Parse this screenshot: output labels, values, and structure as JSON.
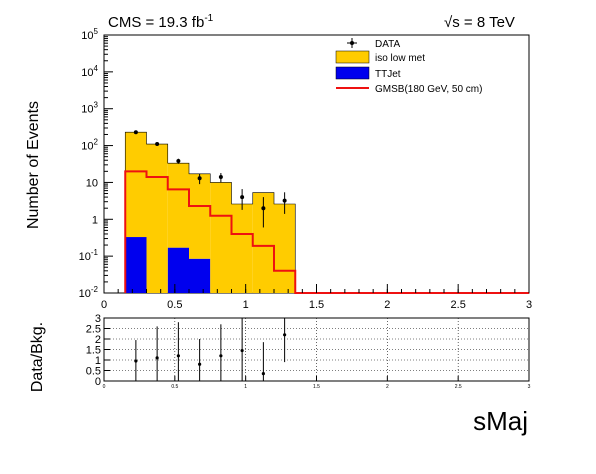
{
  "header": {
    "left_label": "CMS = 19.3 fb",
    "left_exponent": "-1",
    "right_label": "s = 8 TeV",
    "right_sqrt_symbol": "√"
  },
  "legend": {
    "items": [
      {
        "label": "DATA",
        "kind": "marker",
        "color": "#000000"
      },
      {
        "label": "iso low met",
        "kind": "fill",
        "color": "#ffcc00"
      },
      {
        "label": "TTJet",
        "kind": "fill",
        "color": "#0000ee"
      },
      {
        "label": "GMSB(180 GeV, 50 cm)",
        "kind": "line",
        "color": "#ee1111"
      }
    ]
  },
  "chart_data": [
    {
      "type": "bar",
      "ylabel": "Number of Events",
      "xlabel": "",
      "yscale": "log",
      "xlim": [
        0,
        3
      ],
      "ylim": [
        0.01,
        100000
      ],
      "x_ticks": [
        "0",
        "0.5",
        "1",
        "1.5",
        "2",
        "2.5",
        "3"
      ],
      "y_ticks": [
        {
          "base": "10",
          "exp": "-2"
        },
        {
          "base": "10",
          "exp": "-1"
        },
        {
          "base": "1",
          "exp": ""
        },
        {
          "base": "10",
          "exp": ""
        },
        {
          "base": "10",
          "exp": "2"
        },
        {
          "base": "10",
          "exp": "3"
        },
        {
          "base": "10",
          "exp": "4"
        },
        {
          "base": "10",
          "exp": "5"
        }
      ],
      "bin_edges": [
        0.15,
        0.3,
        0.45,
        0.6,
        0.75,
        0.9,
        1.05,
        1.2,
        1.35
      ],
      "series": [
        {
          "name": "iso low met",
          "kind": "stack",
          "color": "#ffcc00",
          "values": [
            230,
            110,
            33,
            17,
            10,
            2.6,
            5.3,
            2.6
          ]
        },
        {
          "name": "TTJet",
          "kind": "stack",
          "color": "#0000ee",
          "values": [
            0.33,
            0,
            0.17,
            0.085,
            0,
            0,
            0,
            0
          ]
        },
        {
          "name": "GMSB(180 GeV, 50 cm)",
          "kind": "step",
          "color": "#ee1111",
          "values": [
            20,
            14,
            6.5,
            2.3,
            1.25,
            0.4,
            0.19,
            0.04
          ]
        },
        {
          "name": "DATA",
          "kind": "points",
          "color": "#000000",
          "x": [
            0.225,
            0.375,
            0.525,
            0.675,
            0.825,
            0.975,
            1.125,
            1.275
          ],
          "y": [
            230,
            110,
            38,
            13,
            14,
            4,
            2,
            3.2
          ],
          "err_low": [
            15,
            10,
            6,
            4,
            4,
            2.2,
            1.4,
            1.8
          ],
          "err_high": [
            15,
            10,
            6,
            4,
            4,
            2.6,
            2.0,
            2.2
          ]
        }
      ],
      "grid": false,
      "legend_position": "top-right"
    },
    {
      "type": "scatter",
      "ylabel": "Data/Bkg.",
      "xlabel": "sMaj",
      "xlim": [
        0,
        3
      ],
      "ylim": [
        0,
        3
      ],
      "x_ticks": [
        "0",
        "0.5",
        "1",
        "1.5",
        "2",
        "2.5",
        "3"
      ],
      "y_ticks": [
        "0",
        "0.5",
        "1",
        "1.5",
        "2",
        "2.5",
        "3"
      ],
      "series": [
        {
          "name": "",
          "kind": "points",
          "x": [
            0.225,
            0.375,
            0.525,
            0.675,
            0.825,
            0.975,
            1.125,
            1.275
          ],
          "y": [
            0.95,
            1.1,
            1.2,
            0.8,
            1.2,
            1.45,
            0.35,
            2.2
          ],
          "err_low": [
            0.95,
            1.1,
            1.2,
            0.8,
            1.2,
            1.45,
            0.35,
            1.3
          ],
          "err_high": [
            1.0,
            1.5,
            1.6,
            1.2,
            1.5,
            1.6,
            1.5,
            1.3
          ]
        }
      ],
      "grid": true
    }
  ]
}
